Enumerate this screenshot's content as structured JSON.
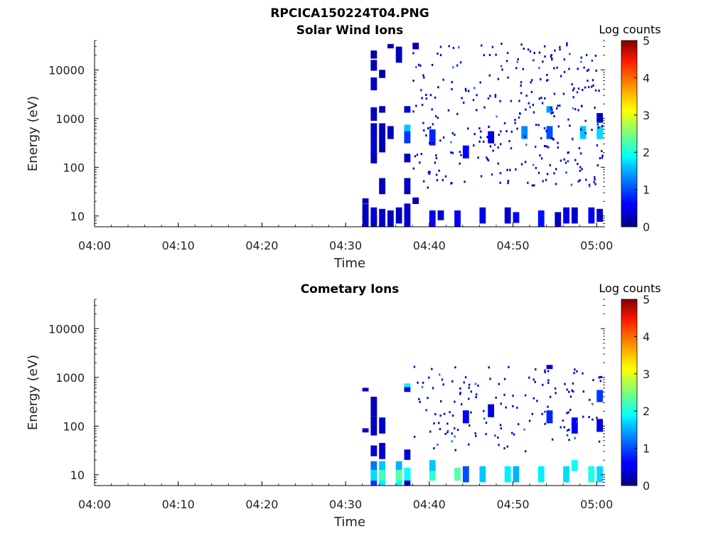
{
  "figure_title": "RPCICA150224T04.PNG",
  "chart_data": [
    {
      "type": "heatmap",
      "title": "Solar Wind Ions",
      "xlabel": "Time",
      "ylabel": "Energy (eV)",
      "x_range": [
        "04:00",
        "05:01"
      ],
      "x_ticks": [
        "04:00",
        "04:10",
        "04:20",
        "04:30",
        "04:40",
        "04:50",
        "05:00"
      ],
      "y_scale": "log",
      "y_range": [
        6,
        40000
      ],
      "y_ticks": [
        "10",
        "100",
        "1000",
        "10000"
      ],
      "colorbar": {
        "label": "Log counts",
        "range": [
          0,
          5
        ],
        "ticks": [
          "0",
          "1",
          "2",
          "3",
          "4",
          "5"
        ],
        "colormap": "jet"
      },
      "data_start": "04:32",
      "cells": [
        [
          "04:32",
          7,
          3.5,
          0.3
        ],
        [
          "04:32",
          12,
          6,
          0.3
        ],
        [
          "04:32",
          20,
          3,
          0.2
        ],
        [
          "04:33",
          7,
          3,
          0.2
        ],
        [
          "04:33",
          10,
          5,
          0.4
        ],
        [
          "04:33",
          150,
          50,
          0.2
        ],
        [
          "04:33",
          300,
          200,
          0.4
        ],
        [
          "04:33",
          600,
          200,
          0.3
        ],
        [
          "04:33",
          1200,
          500,
          0.3
        ],
        [
          "04:33",
          5000,
          2000,
          0.3
        ],
        [
          "04:33",
          12000,
          4000,
          0.3
        ],
        [
          "04:33",
          20000,
          5000,
          0.2
        ],
        [
          "04:34",
          8,
          6,
          0.4
        ],
        [
          "04:34",
          40,
          20,
          0.3
        ],
        [
          "04:34",
          250,
          80,
          0.2
        ],
        [
          "04:34",
          500,
          300,
          0.3
        ],
        [
          "04:34",
          1500,
          300,
          0.3
        ],
        [
          "04:34",
          8000,
          2000,
          0.2
        ],
        [
          "04:35",
          8,
          5,
          0.3
        ],
        [
          "04:35",
          500,
          200,
          0.3
        ],
        [
          "04:35",
          30000,
          4000,
          0.2
        ],
        [
          "04:36",
          10,
          5,
          0.3
        ],
        [
          "04:36",
          20000,
          10000,
          0.3
        ],
        [
          "04:37",
          10,
          8,
          0.4
        ],
        [
          "04:37",
          40,
          20,
          0.3
        ],
        [
          "04:37",
          150,
          40,
          0.3
        ],
        [
          "04:37",
          600,
          150,
          1.6
        ],
        [
          "04:37",
          1500,
          300,
          0.4
        ],
        [
          "04:37",
          400,
          150,
          0.9
        ],
        [
          "04:38",
          30000,
          6000,
          0.3
        ],
        [
          "04:38",
          20,
          4,
          0.2
        ],
        [
          "04:40",
          8,
          5,
          0.6
        ],
        [
          "04:40",
          400,
          200,
          0.8
        ],
        [
          "04:41",
          10,
          3,
          0.4
        ],
        [
          "04:43",
          8,
          5,
          0.6
        ],
        [
          "04:44",
          200,
          80,
          0.6
        ],
        [
          "04:46",
          10,
          5,
          0.5
        ],
        [
          "04:47",
          400,
          150,
          0.5
        ],
        [
          "04:49",
          10,
          5,
          0.4
        ],
        [
          "04:50",
          9,
          3,
          0.6
        ],
        [
          "04:51",
          500,
          200,
          1.3
        ],
        [
          "04:53",
          8,
          5,
          0.7
        ],
        [
          "04:54",
          1500,
          300,
          1.4
        ],
        [
          "04:54",
          500,
          200,
          1.0
        ],
        [
          "04:55",
          8,
          4,
          0.3
        ],
        [
          "04:56",
          10,
          5,
          0.5
        ],
        [
          "04:57",
          10,
          5,
          0.4
        ],
        [
          "04:58",
          500,
          200,
          1.6
        ],
        [
          "04:59",
          10,
          5,
          0.6
        ],
        [
          "05:00",
          500,
          200,
          1.7
        ],
        [
          "05:00",
          1000,
          300,
          0.4
        ],
        [
          "05:00",
          10,
          4,
          0.4
        ]
      ]
    },
    {
      "type": "heatmap",
      "title": "Cometary Ions",
      "xlabel": "Time",
      "ylabel": "Energy (eV)",
      "x_range": [
        "04:00",
        "05:01"
      ],
      "x_ticks": [
        "04:00",
        "04:10",
        "04:20",
        "04:30",
        "04:40",
        "04:50",
        "05:00"
      ],
      "y_scale": "log",
      "y_range": [
        6,
        40000
      ],
      "y_ticks": [
        "10",
        "100",
        "1000",
        "10000"
      ],
      "colorbar": {
        "label": "Log counts",
        "range": [
          0,
          5
        ],
        "ticks": [
          "0",
          "1",
          "2",
          "3",
          "4",
          "5"
        ],
        "colormap": "jet"
      },
      "data_start": "04:32",
      "cells": [
        [
          "04:32",
          550,
          60,
          0.3
        ],
        [
          "04:32",
          80,
          10,
          0.4
        ],
        [
          "04:33",
          7,
          3,
          0.9
        ],
        [
          "04:33",
          10,
          4,
          1.7
        ],
        [
          "04:33",
          15,
          4,
          1.2
        ],
        [
          "04:33",
          30,
          10,
          0.4
        ],
        [
          "04:33",
          100,
          60,
          0.3
        ],
        [
          "04:33",
          250,
          150,
          0.3
        ],
        [
          "04:34",
          7,
          3,
          1.8
        ],
        [
          "04:34",
          10,
          4,
          2.2
        ],
        [
          "04:34",
          15,
          4,
          1.6
        ],
        [
          "04:34",
          30,
          15,
          0.4
        ],
        [
          "04:34",
          100,
          50,
          0.4
        ],
        [
          "04:36",
          7,
          3,
          1.9
        ],
        [
          "04:36",
          10,
          4,
          2.3
        ],
        [
          "04:36",
          15,
          4,
          1.5
        ],
        [
          "04:37",
          7,
          3,
          0.3
        ],
        [
          "04:37",
          10,
          4,
          1.9
        ],
        [
          "04:37",
          650,
          100,
          1.8
        ],
        [
          "04:37",
          550,
          80,
          0.5
        ],
        [
          "04:37",
          25,
          8,
          0.4
        ],
        [
          "04:40",
          10,
          4,
          2.1
        ],
        [
          "04:40",
          15,
          5,
          1.6
        ],
        [
          "04:43",
          10,
          4,
          2.3
        ],
        [
          "04:44",
          10,
          5,
          1.0
        ],
        [
          "04:44",
          150,
          60,
          0.6
        ],
        [
          "04:46",
          10,
          5,
          1.6
        ],
        [
          "04:47",
          200,
          80,
          0.5
        ],
        [
          "04:49",
          10,
          5,
          1.8
        ],
        [
          "04:50",
          10,
          5,
          1.5
        ],
        [
          "04:53",
          10,
          5,
          1.8
        ],
        [
          "04:54",
          150,
          60,
          0.8
        ],
        [
          "04:54",
          1600,
          200,
          0.4
        ],
        [
          "04:56",
          10,
          5,
          1.7
        ],
        [
          "04:57",
          15,
          5,
          1.9
        ],
        [
          "04:57",
          100,
          50,
          0.6
        ],
        [
          "04:59",
          10,
          5,
          2.0
        ],
        [
          "05:00",
          10,
          5,
          1.7
        ],
        [
          "05:00",
          400,
          150,
          0.9
        ],
        [
          "05:00",
          100,
          40,
          0.5
        ]
      ]
    }
  ]
}
